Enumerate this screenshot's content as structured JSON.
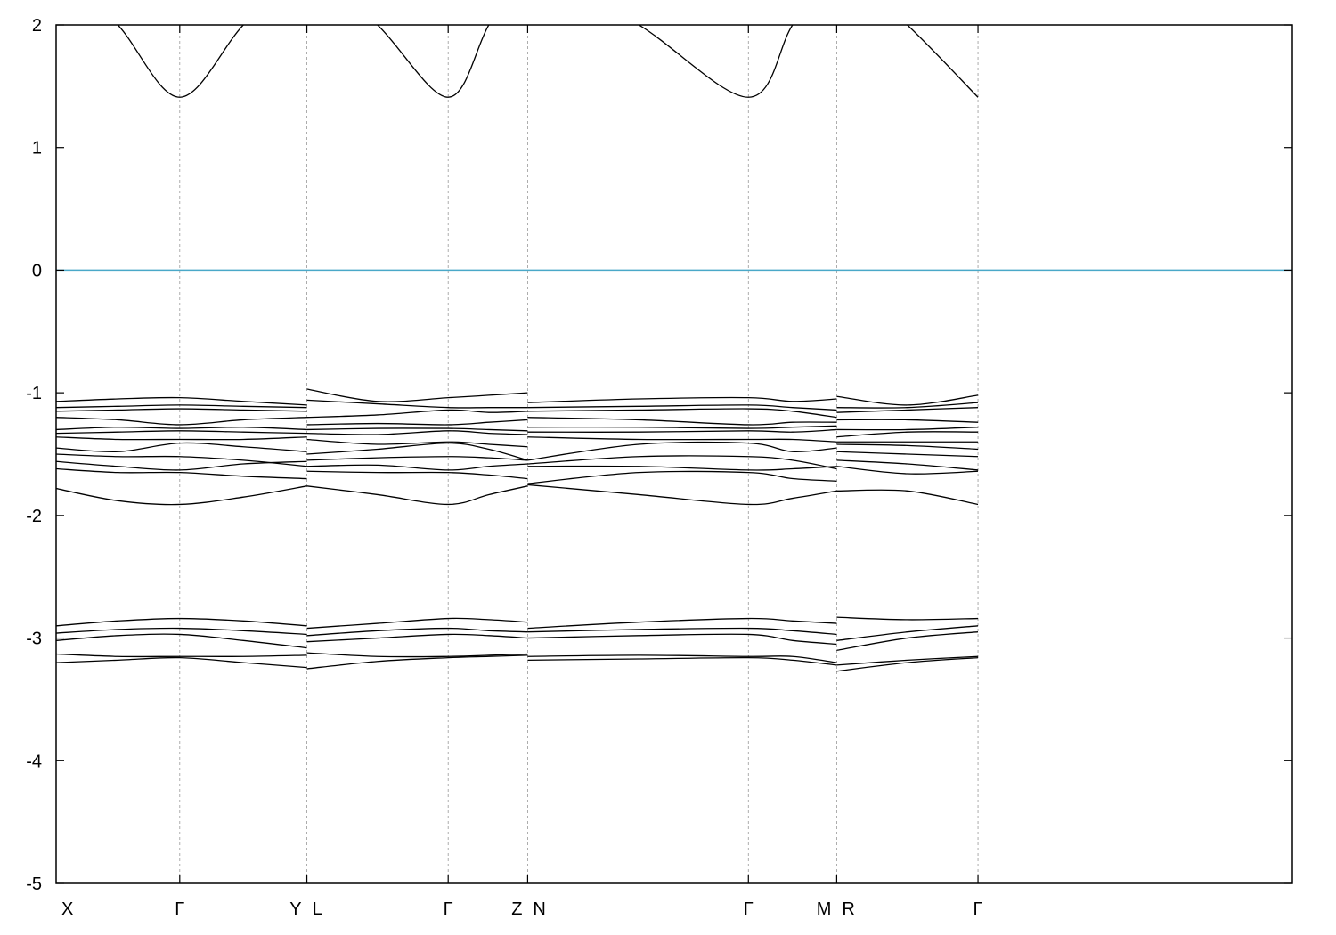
{
  "chart_data": {
    "type": "line",
    "title": "",
    "xlabel": "",
    "ylabel": "",
    "ylim": [
      -5,
      2
    ],
    "yticks": [
      2,
      1,
      0,
      -1,
      -2,
      -3,
      -4,
      -5
    ],
    "xlim": [
      0,
      7
    ],
    "kpoints": [
      {
        "label": "X",
        "x": 0
      },
      {
        "label": "Γ",
        "x": 0.7
      },
      {
        "label": "Y",
        "x": 1.42
      },
      {
        "label": "L",
        "x": 1.42
      },
      {
        "label": "Γ",
        "x": 2.22
      },
      {
        "label": "Z",
        "x": 2.67
      },
      {
        "label": "N",
        "x": 2.67
      },
      {
        "label": "Γ",
        "x": 3.92
      },
      {
        "label": "M",
        "x": 4.42
      },
      {
        "label": "R",
        "x": 4.42
      },
      {
        "label": "Γ",
        "x": 5.22
      }
    ],
    "grid": {
      "x_dashed_at_kpoints": true,
      "y": false
    },
    "fermi_level": {
      "value": 0,
      "color": "#4aa8c8"
    },
    "band_color": "#000000",
    "segments": [
      {
        "name": "X-Γ-Y",
        "x": [
          0,
          0.35,
          0.7,
          1.06,
          1.42
        ],
        "bands": [
          [
            2.5,
            2.0,
            1.41,
            2.0,
            2.5
          ],
          [
            -1.07,
            -1.05,
            -1.04,
            -1.07,
            -1.1
          ],
          [
            -1.12,
            -1.11,
            -1.1,
            -1.11,
            -1.12
          ],
          [
            -1.15,
            -1.14,
            -1.13,
            -1.14,
            -1.15
          ],
          [
            -1.2,
            -1.22,
            -1.26,
            -1.22,
            -1.2
          ],
          [
            -1.3,
            -1.28,
            -1.29,
            -1.28,
            -1.3
          ],
          [
            -1.33,
            -1.32,
            -1.31,
            -1.32,
            -1.33
          ],
          [
            -1.36,
            -1.38,
            -1.38,
            -1.38,
            -1.36
          ],
          [
            -1.45,
            -1.48,
            -1.41,
            -1.44,
            -1.48
          ],
          [
            -1.5,
            -1.52,
            -1.52,
            -1.55,
            -1.6
          ],
          [
            -1.56,
            -1.6,
            -1.63,
            -1.58,
            -1.56
          ],
          [
            -1.62,
            -1.65,
            -1.65,
            -1.68,
            -1.7
          ],
          [
            -1.78,
            -1.88,
            -1.91,
            -1.85,
            -1.76
          ],
          [
            -2.9,
            -2.86,
            -2.84,
            -2.86,
            -2.9
          ],
          [
            -2.96,
            -2.93,
            -2.92,
            -2.94,
            -2.97
          ],
          [
            -3.02,
            -2.98,
            -2.97,
            -3.02,
            -3.08
          ],
          [
            -3.13,
            -3.15,
            -3.15,
            -3.15,
            -3.14
          ],
          [
            -3.2,
            -3.18,
            -3.16,
            -3.2,
            -3.24
          ]
        ]
      },
      {
        "name": "L-Γ-Z",
        "x": [
          1.42,
          1.82,
          2.22,
          2.45,
          2.67
        ],
        "bands": [
          [
            2.5,
            2.0,
            1.41,
            2.0,
            2.5
          ],
          [
            -0.97,
            -1.07,
            -1.04,
            -1.02,
            -1.0
          ],
          [
            -1.06,
            -1.09,
            -1.12,
            -1.12,
            -1.12
          ],
          [
            -1.2,
            -1.18,
            -1.14,
            -1.16,
            -1.15
          ],
          [
            -1.26,
            -1.25,
            -1.26,
            -1.24,
            -1.22
          ],
          [
            -1.3,
            -1.29,
            -1.29,
            -1.3,
            -1.31
          ],
          [
            -1.33,
            -1.34,
            -1.31,
            -1.33,
            -1.34
          ],
          [
            -1.38,
            -1.42,
            -1.4,
            -1.42,
            -1.44
          ],
          [
            -1.5,
            -1.46,
            -1.41,
            -1.46,
            -1.55
          ],
          [
            -1.55,
            -1.53,
            -1.52,
            -1.53,
            -1.55
          ],
          [
            -1.6,
            -1.59,
            -1.63,
            -1.6,
            -1.58
          ],
          [
            -1.64,
            -1.65,
            -1.65,
            -1.67,
            -1.7
          ],
          [
            -1.76,
            -1.83,
            -1.91,
            -1.83,
            -1.76
          ],
          [
            -2.92,
            -2.88,
            -2.84,
            -2.85,
            -2.87
          ],
          [
            -2.98,
            -2.94,
            -2.92,
            -2.94,
            -2.95
          ],
          [
            -3.03,
            -3.0,
            -2.97,
            -2.98,
            -3.0
          ],
          [
            -3.12,
            -3.15,
            -3.15,
            -3.14,
            -3.13
          ],
          [
            -3.25,
            -3.19,
            -3.16,
            -3.15,
            -3.14
          ]
        ]
      },
      {
        "name": "N-Γ-M",
        "x": [
          2.67,
          3.3,
          3.92,
          4.17,
          4.42
        ],
        "bands": [
          [
            2.5,
            2.0,
            1.41,
            2.0,
            2.5
          ],
          [
            -1.08,
            -1.05,
            -1.04,
            -1.07,
            -1.05
          ],
          [
            -1.12,
            -1.11,
            -1.1,
            -1.12,
            -1.14
          ],
          [
            -1.15,
            -1.14,
            -1.13,
            -1.15,
            -1.2
          ],
          [
            -1.2,
            -1.22,
            -1.26,
            -1.24,
            -1.24
          ],
          [
            -1.28,
            -1.28,
            -1.29,
            -1.28,
            -1.27
          ],
          [
            -1.32,
            -1.32,
            -1.31,
            -1.32,
            -1.3
          ],
          [
            -1.36,
            -1.38,
            -1.38,
            -1.38,
            -1.4
          ],
          [
            -1.55,
            -1.42,
            -1.41,
            -1.48,
            -1.45
          ],
          [
            -1.58,
            -1.52,
            -1.52,
            -1.55,
            -1.62
          ],
          [
            -1.6,
            -1.6,
            -1.63,
            -1.62,
            -1.6
          ],
          [
            -1.74,
            -1.65,
            -1.65,
            -1.7,
            -1.72
          ],
          [
            -1.75,
            -1.83,
            -1.91,
            -1.86,
            -1.8
          ],
          [
            -2.92,
            -2.87,
            -2.84,
            -2.86,
            -2.88
          ],
          [
            -2.95,
            -2.93,
            -2.92,
            -2.94,
            -2.97
          ],
          [
            -3.0,
            -2.98,
            -2.97,
            -3.02,
            -3.05
          ],
          [
            -3.15,
            -3.14,
            -3.15,
            -3.15,
            -3.2
          ],
          [
            -3.18,
            -3.17,
            -3.16,
            -3.18,
            -3.22
          ]
        ]
      },
      {
        "name": "R-Γ",
        "x": [
          4.42,
          4.82,
          5.22
        ],
        "bands": [
          [
            2.5,
            2.0,
            1.41
          ],
          [
            -1.03,
            -1.1,
            -1.02
          ],
          [
            -1.12,
            -1.12,
            -1.08
          ],
          [
            -1.16,
            -1.14,
            -1.12
          ],
          [
            -1.22,
            -1.22,
            -1.24
          ],
          [
            -1.3,
            -1.3,
            -1.28
          ],
          [
            -1.36,
            -1.32,
            -1.32
          ],
          [
            -1.4,
            -1.4,
            -1.4
          ],
          [
            -1.42,
            -1.43,
            -1.46
          ],
          [
            -1.48,
            -1.5,
            -1.52
          ],
          [
            -1.55,
            -1.58,
            -1.63
          ],
          [
            -1.6,
            -1.66,
            -1.64
          ],
          [
            -1.8,
            -1.8,
            -1.91
          ],
          [
            -2.83,
            -2.85,
            -2.84
          ],
          [
            -3.02,
            -2.95,
            -2.9
          ],
          [
            -3.1,
            -3.0,
            -2.95
          ],
          [
            -3.22,
            -3.18,
            -3.15
          ],
          [
            -3.27,
            -3.2,
            -3.16
          ]
        ]
      }
    ]
  }
}
